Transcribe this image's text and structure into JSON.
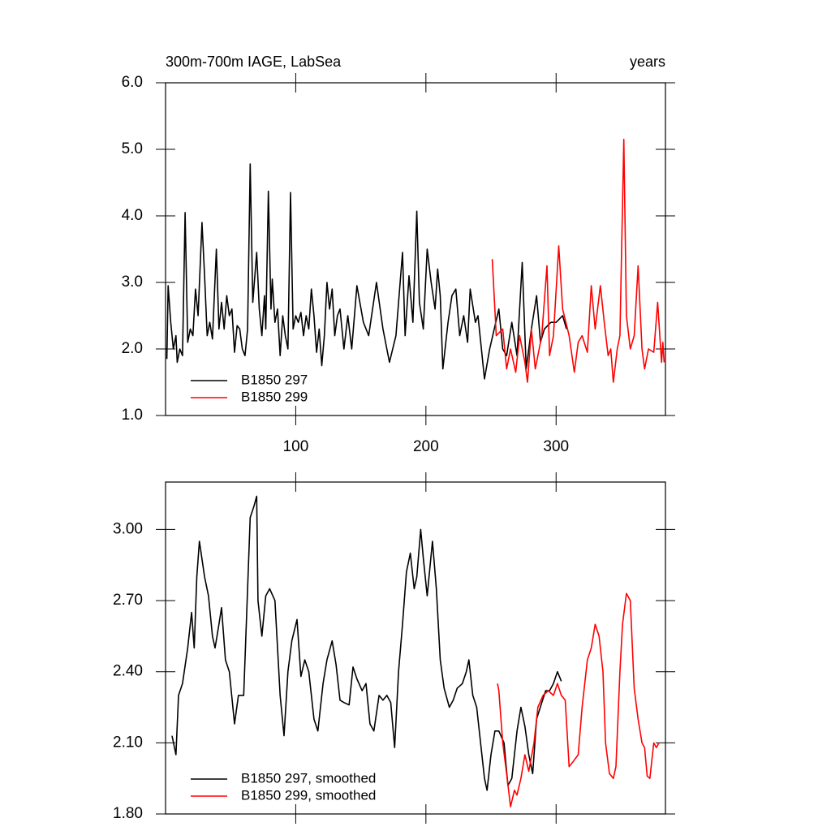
{
  "chart_data": [
    {
      "type": "line",
      "title": "300m-700m IAGE, LabSea",
      "subtitle": "years",
      "xlim": [
        0,
        384
      ],
      "xticks": [
        100,
        200,
        300
      ],
      "xtick_labels": true,
      "ylim": [
        1,
        6
      ],
      "yticks": [
        {
          "value": 1,
          "label": "1.0"
        },
        {
          "value": 2,
          "label": "2.0"
        },
        {
          "value": 3,
          "label": "3.0"
        },
        {
          "value": 4,
          "label": "4.0"
        },
        {
          "value": 5,
          "label": "5.0"
        },
        {
          "value": 6,
          "label": "6.0"
        }
      ],
      "legend": "lower left",
      "series": [
        {
          "name": "B1850 297",
          "color": "#000000",
          "x": [
            1,
            2,
            4,
            6,
            8,
            9,
            11,
            13,
            15,
            17,
            19,
            21,
            23,
            25,
            28,
            30,
            32,
            34,
            36,
            39,
            41,
            43,
            45,
            47,
            49,
            51,
            53,
            55,
            57,
            59,
            61,
            63,
            65,
            67,
            70,
            72,
            74,
            76,
            77,
            79,
            81,
            82,
            84,
            86,
            88,
            90,
            92,
            94,
            96,
            98,
            100,
            102,
            104,
            106,
            108,
            110,
            112,
            114,
            116,
            118,
            120,
            122,
            124,
            126,
            128,
            130,
            132,
            134,
            137,
            140,
            143,
            147,
            152,
            156,
            162,
            167,
            172,
            177,
            182,
            184,
            187,
            190,
            193,
            195,
            198,
            201,
            204,
            207,
            209,
            211,
            213,
            217,
            220,
            223,
            226,
            229,
            232,
            234,
            238,
            240,
            245,
            249,
            256,
            259,
            262,
            266,
            270,
            274,
            277,
            281,
            285,
            288,
            291,
            296,
            300,
            305,
            308
          ],
          "values": [
            1.85,
            2.95,
            2.4,
            2.0,
            2.2,
            1.8,
            2.0,
            1.9,
            4.05,
            2.1,
            2.3,
            2.2,
            2.9,
            2.5,
            3.9,
            3.1,
            2.2,
            2.4,
            2.15,
            3.5,
            2.3,
            2.7,
            2.3,
            2.8,
            2.5,
            2.6,
            1.95,
            2.35,
            2.3,
            2.0,
            1.9,
            2.3,
            4.78,
            2.7,
            3.45,
            2.6,
            2.2,
            2.8,
            2.3,
            4.37,
            2.6,
            3.05,
            2.4,
            2.6,
            1.9,
            2.5,
            2.2,
            2.0,
            4.35,
            2.3,
            2.5,
            2.4,
            2.55,
            2.2,
            2.5,
            2.3,
            2.9,
            2.5,
            1.95,
            2.3,
            1.75,
            2.2,
            3.0,
            2.6,
            2.9,
            2.2,
            2.5,
            2.6,
            2.0,
            2.5,
            2.0,
            2.95,
            2.4,
            2.2,
            3.0,
            2.3,
            1.8,
            2.2,
            3.45,
            2.2,
            3.1,
            2.4,
            4.07,
            2.7,
            2.3,
            3.5,
            3.0,
            2.6,
            3.2,
            2.8,
            1.7,
            2.4,
            2.8,
            2.9,
            2.2,
            2.5,
            2.1,
            2.9,
            2.4,
            2.5,
            1.55,
            2.0,
            2.6,
            2.0,
            1.9,
            2.4,
            1.9,
            3.3,
            1.7,
            2.3,
            2.8,
            2.1,
            2.3,
            2.4,
            2.4,
            2.5,
            2.3
          ]
        },
        {
          "name": "B1850 299",
          "color": "#ff0000",
          "x": [
            251,
            254,
            259,
            262,
            265,
            269,
            272,
            276,
            278,
            281,
            284,
            289,
            293,
            295,
            298,
            302,
            305,
            310,
            314,
            317,
            320,
            324,
            327,
            330,
            334,
            337,
            340,
            342,
            344,
            347,
            349,
            352,
            354,
            357,
            360,
            363,
            366,
            368,
            371,
            375,
            378,
            381,
            382,
            383
          ],
          "values": [
            3.35,
            2.2,
            2.3,
            1.7,
            2.0,
            1.65,
            2.2,
            1.8,
            1.5,
            2.3,
            1.7,
            2.2,
            3.25,
            1.9,
            2.2,
            3.55,
            2.6,
            2.2,
            1.65,
            2.1,
            2.2,
            1.95,
            2.95,
            2.3,
            2.95,
            2.4,
            1.9,
            2.0,
            1.5,
            2.0,
            2.2,
            5.15,
            2.5,
            2.0,
            2.2,
            3.25,
            2.0,
            1.7,
            2.0,
            1.95,
            2.7,
            1.8,
            2.1,
            1.8
          ]
        }
      ]
    },
    {
      "type": "line",
      "xlim": [
        0,
        384
      ],
      "xticks": [
        100,
        200,
        300
      ],
      "xtick_labels": false,
      "ylim": [
        1.8,
        3.2
      ],
      "yticks": [
        {
          "value": 1.8,
          "label": "1.80"
        },
        {
          "value": 2.1,
          "label": "2.10"
        },
        {
          "value": 2.4,
          "label": "2.40"
        },
        {
          "value": 2.7,
          "label": "2.70"
        },
        {
          "value": 3,
          "label": "3.00"
        }
      ],
      "legend": "lower left",
      "series": [
        {
          "name": "B1850 297, smoothed",
          "color": "#000000",
          "x": [
            5,
            8,
            10,
            13,
            17,
            20,
            22,
            24,
            26,
            30,
            33,
            36,
            38,
            41,
            43,
            46,
            49,
            53,
            56,
            60,
            63,
            65,
            68,
            70,
            71,
            74,
            77,
            80,
            84,
            88,
            91,
            94,
            97,
            101,
            104,
            107,
            110,
            114,
            117,
            121,
            124,
            128,
            131,
            134,
            137,
            141,
            144,
            147,
            151,
            154,
            157,
            160,
            164,
            167,
            170,
            173,
            176,
            179,
            182,
            185,
            188,
            191,
            193,
            196,
            198,
            201,
            205,
            208,
            211,
            214,
            218,
            221,
            224,
            228,
            231,
            233,
            236,
            239,
            241,
            245,
            247,
            250,
            253,
            256,
            260,
            263,
            266,
            270,
            273,
            276,
            279,
            282,
            285,
            289,
            292,
            295,
            298,
            301,
            304
          ],
          "values": [
            2.13,
            2.05,
            2.3,
            2.35,
            2.5,
            2.65,
            2.5,
            2.8,
            2.95,
            2.8,
            2.72,
            2.55,
            2.5,
            2.6,
            2.67,
            2.45,
            2.4,
            2.18,
            2.3,
            2.3,
            2.75,
            3.05,
            3.1,
            3.14,
            2.7,
            2.55,
            2.72,
            2.75,
            2.7,
            2.3,
            2.13,
            2.4,
            2.53,
            2.62,
            2.38,
            2.45,
            2.4,
            2.2,
            2.15,
            2.35,
            2.45,
            2.53,
            2.43,
            2.28,
            2.27,
            2.26,
            2.42,
            2.37,
            2.32,
            2.35,
            2.18,
            2.15,
            2.3,
            2.28,
            2.3,
            2.27,
            2.08,
            2.4,
            2.6,
            2.82,
            2.9,
            2.75,
            2.8,
            3.0,
            2.88,
            2.72,
            2.95,
            2.75,
            2.45,
            2.33,
            2.25,
            2.28,
            2.33,
            2.35,
            2.4,
            2.45,
            2.3,
            2.25,
            2.15,
            1.95,
            1.9,
            2.05,
            2.15,
            2.15,
            2.1,
            1.92,
            1.95,
            2.15,
            2.25,
            2.17,
            2.05,
            1.97,
            2.2,
            2.27,
            2.32,
            2.32,
            2.35,
            2.4,
            2.36
          ]
        },
        {
          "name": "B1850 299, smoothed",
          "color": "#ff0000",
          "x": [
            255,
            256,
            259,
            262,
            265,
            268,
            270,
            273,
            276,
            279,
            283,
            286,
            290,
            294,
            298,
            301,
            304,
            307,
            310,
            313,
            317,
            320,
            324,
            327,
            330,
            333,
            336,
            338,
            341,
            344,
            346,
            349,
            351,
            354,
            357,
            360,
            363,
            366,
            368,
            370,
            372,
            375,
            377,
            379
          ],
          "values": [
            2.35,
            2.32,
            2.1,
            1.97,
            1.83,
            1.9,
            1.88,
            1.95,
            2.05,
            1.98,
            2.1,
            2.25,
            2.3,
            2.32,
            2.3,
            2.35,
            2.3,
            2.28,
            2.0,
            2.02,
            2.05,
            2.25,
            2.45,
            2.5,
            2.6,
            2.55,
            2.4,
            2.1,
            1.97,
            1.95,
            2.0,
            2.4,
            2.6,
            2.73,
            2.7,
            2.33,
            2.2,
            2.1,
            2.08,
            1.96,
            1.95,
            2.1,
            2.08,
            2.1
          ]
        }
      ]
    }
  ]
}
